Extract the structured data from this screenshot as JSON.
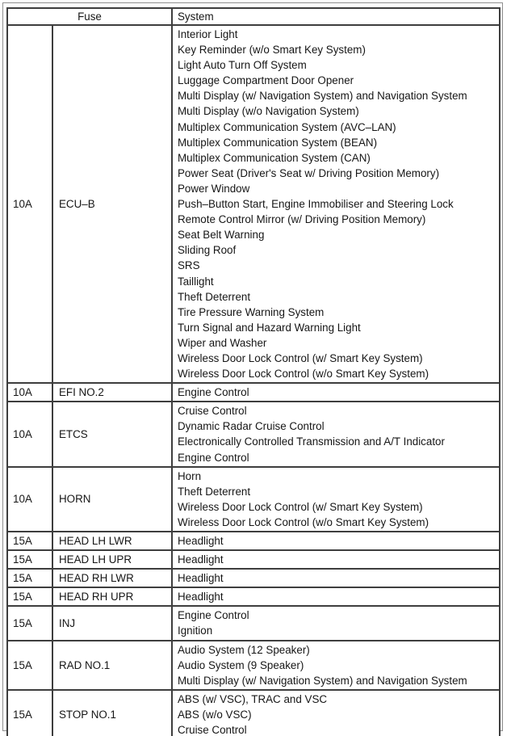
{
  "table": {
    "header": {
      "fuse_label": "Fuse",
      "system_label": "System"
    },
    "rows": [
      {
        "amp": "10A",
        "fuse": "ECU–B",
        "systems": [
          "Interior Light",
          "Key Reminder (w/o Smart Key System)",
          "Light Auto Turn Off System",
          "Luggage Compartment Door Opener",
          "Multi Display (w/ Navigation System) and Navigation System",
          "Multi Display (w/o Navigation System)",
          "Multiplex Communication System (AVC–LAN)",
          "Multiplex Communication System (BEAN)",
          "Multiplex Communication System (CAN)",
          "Power Seat (Driver's Seat w/ Driving Position Memory)",
          "Power Window",
          "Push–Button Start, Engine Immobiliser and Steering Lock",
          "Remote Control Mirror (w/ Driving Position Memory)",
          "Seat Belt Warning",
          "Sliding Roof",
          "SRS",
          "Taillight",
          "Theft Deterrent",
          "Tire Pressure Warning System",
          "Turn Signal and Hazard Warning Light",
          "Wiper and Washer",
          "Wireless Door Lock Control (w/ Smart Key System)",
          "Wireless Door Lock Control (w/o Smart Key System)"
        ]
      },
      {
        "amp": "10A",
        "fuse": "EFI NO.2",
        "systems": [
          "Engine Control"
        ]
      },
      {
        "amp": "10A",
        "fuse": "ETCS",
        "systems": [
          "Cruise Control",
          "Dynamic Radar Cruise Control",
          "Electronically Controlled Transmission and A/T Indicator",
          "Engine Control"
        ]
      },
      {
        "amp": "10A",
        "fuse": "HORN",
        "systems": [
          "Horn",
          "Theft Deterrent",
          "Wireless Door Lock Control (w/ Smart Key System)",
          "Wireless Door Lock Control (w/o Smart Key System)"
        ]
      },
      {
        "amp": "15A",
        "fuse": "HEAD LH LWR",
        "systems": [
          "Headlight"
        ]
      },
      {
        "amp": "15A",
        "fuse": "HEAD LH UPR",
        "systems": [
          "Headlight"
        ]
      },
      {
        "amp": "15A",
        "fuse": "HEAD RH LWR",
        "systems": [
          "Headlight"
        ]
      },
      {
        "amp": "15A",
        "fuse": "HEAD RH UPR",
        "systems": [
          "Headlight"
        ]
      },
      {
        "amp": "15A",
        "fuse": "INJ",
        "systems": [
          "Engine Control",
          "Ignition"
        ]
      },
      {
        "amp": "15A",
        "fuse": "RAD NO.1",
        "systems": [
          "Audio System (12 Speaker)",
          "Audio System (9 Speaker)",
          "Multi Display (w/ Navigation System) and Navigation System"
        ]
      },
      {
        "amp": "15A",
        "fuse": "STOP NO.1",
        "systems": [
          "ABS (w/ VSC), TRAC and VSC",
          "ABS (w/o VSC)",
          "Cruise Control"
        ]
      }
    ]
  },
  "colors": {
    "table_border": "#3e3e3e",
    "frame_border": "#8f8f8f",
    "text": "#161616",
    "background": "#ffffff"
  }
}
